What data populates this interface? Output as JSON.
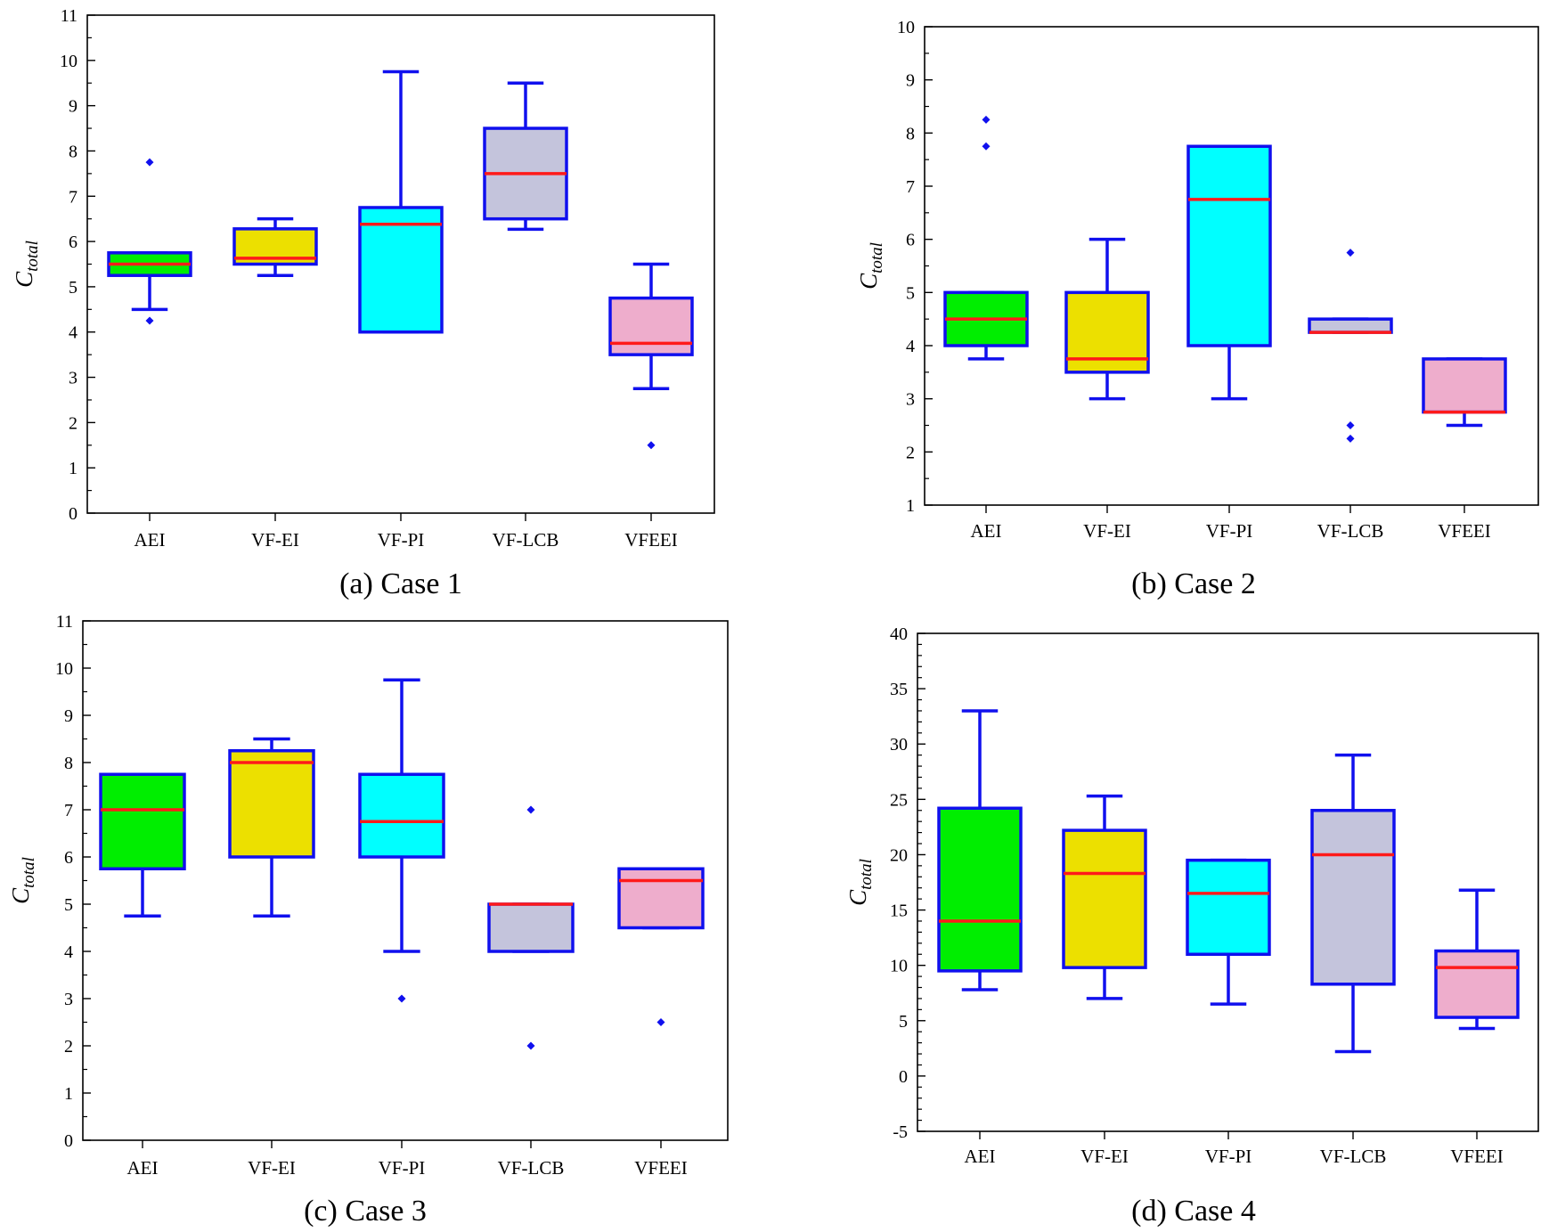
{
  "figure": {
    "colors": {
      "box_edge": "#1010ee",
      "median": "#ff1a1a",
      "outlier": "#1010ee",
      "fills": [
        "#00ee00",
        "#ece000",
        "#00ffff",
        "#c4c4dc",
        "#eeadcc"
      ]
    }
  },
  "chart_data": [
    {
      "type": "box",
      "caption": "(a) Case 1",
      "ylabel_main": "C",
      "ylabel_sub": "total",
      "ylim": [
        0,
        11
      ],
      "yticks": [
        0,
        1,
        2,
        3,
        4,
        5,
        6,
        7,
        8,
        9,
        10,
        11
      ],
      "categories": [
        "AEI",
        "VF-EI",
        "VF-PI",
        "VF-LCB",
        "VFEEI"
      ],
      "boxes": [
        {
          "name": "AEI",
          "whisker_low": 4.5,
          "q1": 5.25,
          "median": 5.5,
          "q3": 5.75,
          "whisker_high": 5.75,
          "outliers": [
            4.25,
            7.75
          ]
        },
        {
          "name": "VF-EI",
          "whisker_low": 5.25,
          "q1": 5.5,
          "median": 5.63,
          "q3": 6.28,
          "whisker_high": 6.5,
          "outliers": []
        },
        {
          "name": "VF-PI",
          "whisker_low": 4.0,
          "q1": 4.0,
          "median": 6.38,
          "q3": 6.75,
          "whisker_high": 9.75,
          "outliers": []
        },
        {
          "name": "VF-LCB",
          "whisker_low": 6.27,
          "q1": 6.5,
          "median": 7.5,
          "q3": 8.5,
          "whisker_high": 9.5,
          "outliers": []
        },
        {
          "name": "VFEEI",
          "whisker_low": 2.75,
          "q1": 3.5,
          "median": 3.75,
          "q3": 4.75,
          "whisker_high": 5.5,
          "outliers": [
            1.5
          ]
        }
      ]
    },
    {
      "type": "box",
      "caption": "(b) Case 2",
      "ylabel_main": "C",
      "ylabel_sub": "total",
      "ylim": [
        1,
        10
      ],
      "yticks": [
        1,
        2,
        3,
        4,
        5,
        6,
        7,
        8,
        9,
        10
      ],
      "categories": [
        "AEI",
        "VF-EI",
        "VF-PI",
        "VF-LCB",
        "VFEEI"
      ],
      "boxes": [
        {
          "name": "AEI",
          "whisker_low": 3.75,
          "q1": 4.0,
          "median": 4.5,
          "q3": 5.0,
          "whisker_high": 5.0,
          "outliers": [
            7.75,
            8.25
          ]
        },
        {
          "name": "VF-EI",
          "whisker_low": 3.0,
          "q1": 3.5,
          "median": 3.75,
          "q3": 5.0,
          "whisker_high": 6.0,
          "outliers": []
        },
        {
          "name": "VF-PI",
          "whisker_low": 3.0,
          "q1": 4.0,
          "median": 6.75,
          "q3": 7.75,
          "whisker_high": 7.75,
          "outliers": []
        },
        {
          "name": "VF-LCB",
          "whisker_low": 4.25,
          "q1": 4.25,
          "median": 4.25,
          "q3": 4.5,
          "whisker_high": 4.5,
          "outliers": [
            2.25,
            2.5,
            5.75
          ]
        },
        {
          "name": "VFEEI",
          "whisker_low": 2.5,
          "q1": 2.75,
          "median": 2.75,
          "q3": 3.75,
          "whisker_high": 3.75,
          "outliers": []
        }
      ]
    },
    {
      "type": "box",
      "caption": "(c) Case 3",
      "ylabel_main": "C",
      "ylabel_sub": "total",
      "ylim": [
        0,
        11
      ],
      "yticks": [
        0,
        1,
        2,
        3,
        4,
        5,
        6,
        7,
        8,
        9,
        10,
        11
      ],
      "categories": [
        "AEI",
        "VF-EI",
        "VF-PI",
        "VF-LCB",
        "VFEEI"
      ],
      "boxes": [
        {
          "name": "AEI",
          "whisker_low": 4.75,
          "q1": 5.75,
          "median": 7.0,
          "q3": 7.75,
          "whisker_high": 7.75,
          "outliers": []
        },
        {
          "name": "VF-EI",
          "whisker_low": 4.75,
          "q1": 6.0,
          "median": 8.0,
          "q3": 8.25,
          "whisker_high": 8.5,
          "outliers": []
        },
        {
          "name": "VF-PI",
          "whisker_low": 4.0,
          "q1": 6.0,
          "median": 6.75,
          "q3": 7.75,
          "whisker_high": 9.75,
          "outliers": [
            3.0
          ]
        },
        {
          "name": "VF-LCB",
          "whisker_low": 4.0,
          "q1": 4.0,
          "median": 5.0,
          "q3": 5.0,
          "whisker_high": 5.0,
          "outliers": [
            2.0,
            7.0
          ]
        },
        {
          "name": "VFEEI",
          "whisker_low": 4.5,
          "q1": 4.5,
          "median": 5.5,
          "q3": 5.75,
          "whisker_high": 5.75,
          "outliers": [
            2.5
          ]
        }
      ]
    },
    {
      "type": "box",
      "caption": "(d) Case 4",
      "ylabel_main": "C",
      "ylabel_sub": "total",
      "ylim": [
        -5,
        40
      ],
      "yticks": [
        -5,
        0,
        5,
        10,
        15,
        20,
        25,
        30,
        35,
        40
      ],
      "categories": [
        "AEI",
        "VF-EI",
        "VF-PI",
        "VF-LCB",
        "VFEEI"
      ],
      "boxes": [
        {
          "name": "AEI",
          "whisker_low": 7.8,
          "q1": 9.5,
          "median": 14.0,
          "q3": 24.2,
          "whisker_high": 33.0,
          "outliers": []
        },
        {
          "name": "VF-EI",
          "whisker_low": 7.0,
          "q1": 9.8,
          "median": 18.3,
          "q3": 22.2,
          "whisker_high": 25.3,
          "outliers": []
        },
        {
          "name": "VF-PI",
          "whisker_low": 6.5,
          "q1": 11.0,
          "median": 16.5,
          "q3": 19.5,
          "whisker_high": 19.5,
          "outliers": []
        },
        {
          "name": "VF-LCB",
          "whisker_low": 2.2,
          "q1": 8.3,
          "median": 20.0,
          "q3": 24.0,
          "whisker_high": 29.0,
          "outliers": []
        },
        {
          "name": "VFEEI",
          "whisker_low": 4.3,
          "q1": 5.3,
          "median": 9.8,
          "q3": 11.3,
          "whisker_high": 16.8,
          "outliers": []
        }
      ]
    }
  ]
}
